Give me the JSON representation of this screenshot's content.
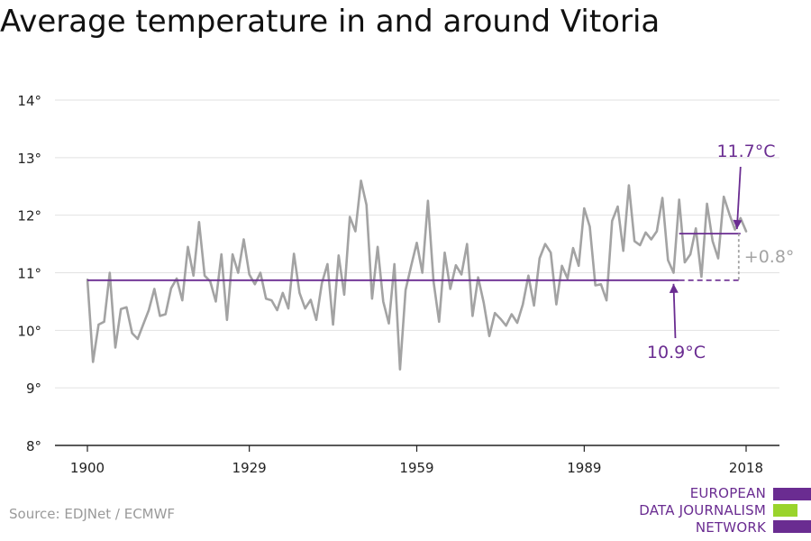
{
  "title": "Average temperature in and around Vitoria",
  "source": "Source: EDJNet / ECMWF",
  "logo": {
    "lines": [
      "EUROPEAN",
      "DATA JOURNALISM",
      "NETWORK"
    ]
  },
  "colors": {
    "series": "#a3a3a3",
    "accent": "#6a2c91",
    "logo_green": "#9ad42c",
    "grid": "#e2e2e2"
  },
  "chart_data": {
    "type": "line",
    "title": "Average temperature in and around Vitoria",
    "xlabel": "",
    "ylabel": "",
    "xlim": [
      1900,
      2018
    ],
    "ylim": [
      8,
      14
    ],
    "yticks": [
      8,
      9,
      10,
      11,
      12,
      13,
      14
    ],
    "ytick_labels": [
      "8°",
      "9°",
      "10°",
      "11°",
      "12°",
      "13°",
      "14°"
    ],
    "xticks": [
      1900,
      1929,
      1959,
      1989,
      2018
    ],
    "xtick_labels": [
      "1900",
      "1929",
      "1959",
      "1989",
      "2018"
    ],
    "grid": true,
    "series": [
      {
        "x_start": 1900,
        "values": [
          10.88,
          9.45,
          10.1,
          10.15,
          11.0,
          9.7,
          10.37,
          10.4,
          9.95,
          9.85,
          10.1,
          10.35,
          10.72,
          10.25,
          10.28,
          10.73,
          10.9,
          10.52,
          11.45,
          10.95,
          11.88,
          10.95,
          10.85,
          10.5,
          11.32,
          10.18,
          11.32,
          11.0,
          11.58,
          10.97,
          10.8,
          11.0,
          10.55,
          10.52,
          10.35,
          10.65,
          10.38,
          11.33,
          10.65,
          10.38,
          10.53,
          10.18,
          10.82,
          11.15,
          10.1,
          11.3,
          10.62,
          11.97,
          11.72,
          12.6,
          12.18,
          10.55,
          11.45,
          10.5,
          10.12,
          11.15,
          9.32,
          10.7,
          11.12,
          11.52,
          11.0,
          12.25,
          10.85,
          10.15,
          11.35,
          10.72,
          11.13,
          10.97,
          11.5,
          10.25,
          10.92,
          10.48,
          9.9,
          10.3,
          10.2,
          10.08,
          10.28,
          10.13,
          10.45,
          10.95,
          10.43,
          11.25,
          11.5,
          11.35,
          10.45,
          11.12,
          10.9,
          11.43,
          11.12,
          12.12,
          11.8,
          10.78,
          10.8,
          10.52,
          11.9,
          12.15,
          11.38,
          12.52,
          11.55,
          11.48,
          11.7,
          11.58,
          11.72,
          12.3,
          11.22,
          11.0,
          12.27,
          11.18,
          11.32,
          11.77,
          10.93,
          12.2,
          11.55,
          11.25,
          12.32,
          12.02,
          11.75,
          11.95,
          11.72
        ]
      }
    ],
    "reference_lines": [
      {
        "label": "10.9°C",
        "value": 10.87,
        "x_start": 1900,
        "x_end": 2006,
        "dashed_to": 2017
      },
      {
        "label": "11.7°C",
        "value": 11.68,
        "x_start": 2006,
        "x_end": 2017
      }
    ],
    "difference_label": "+0.8°"
  }
}
